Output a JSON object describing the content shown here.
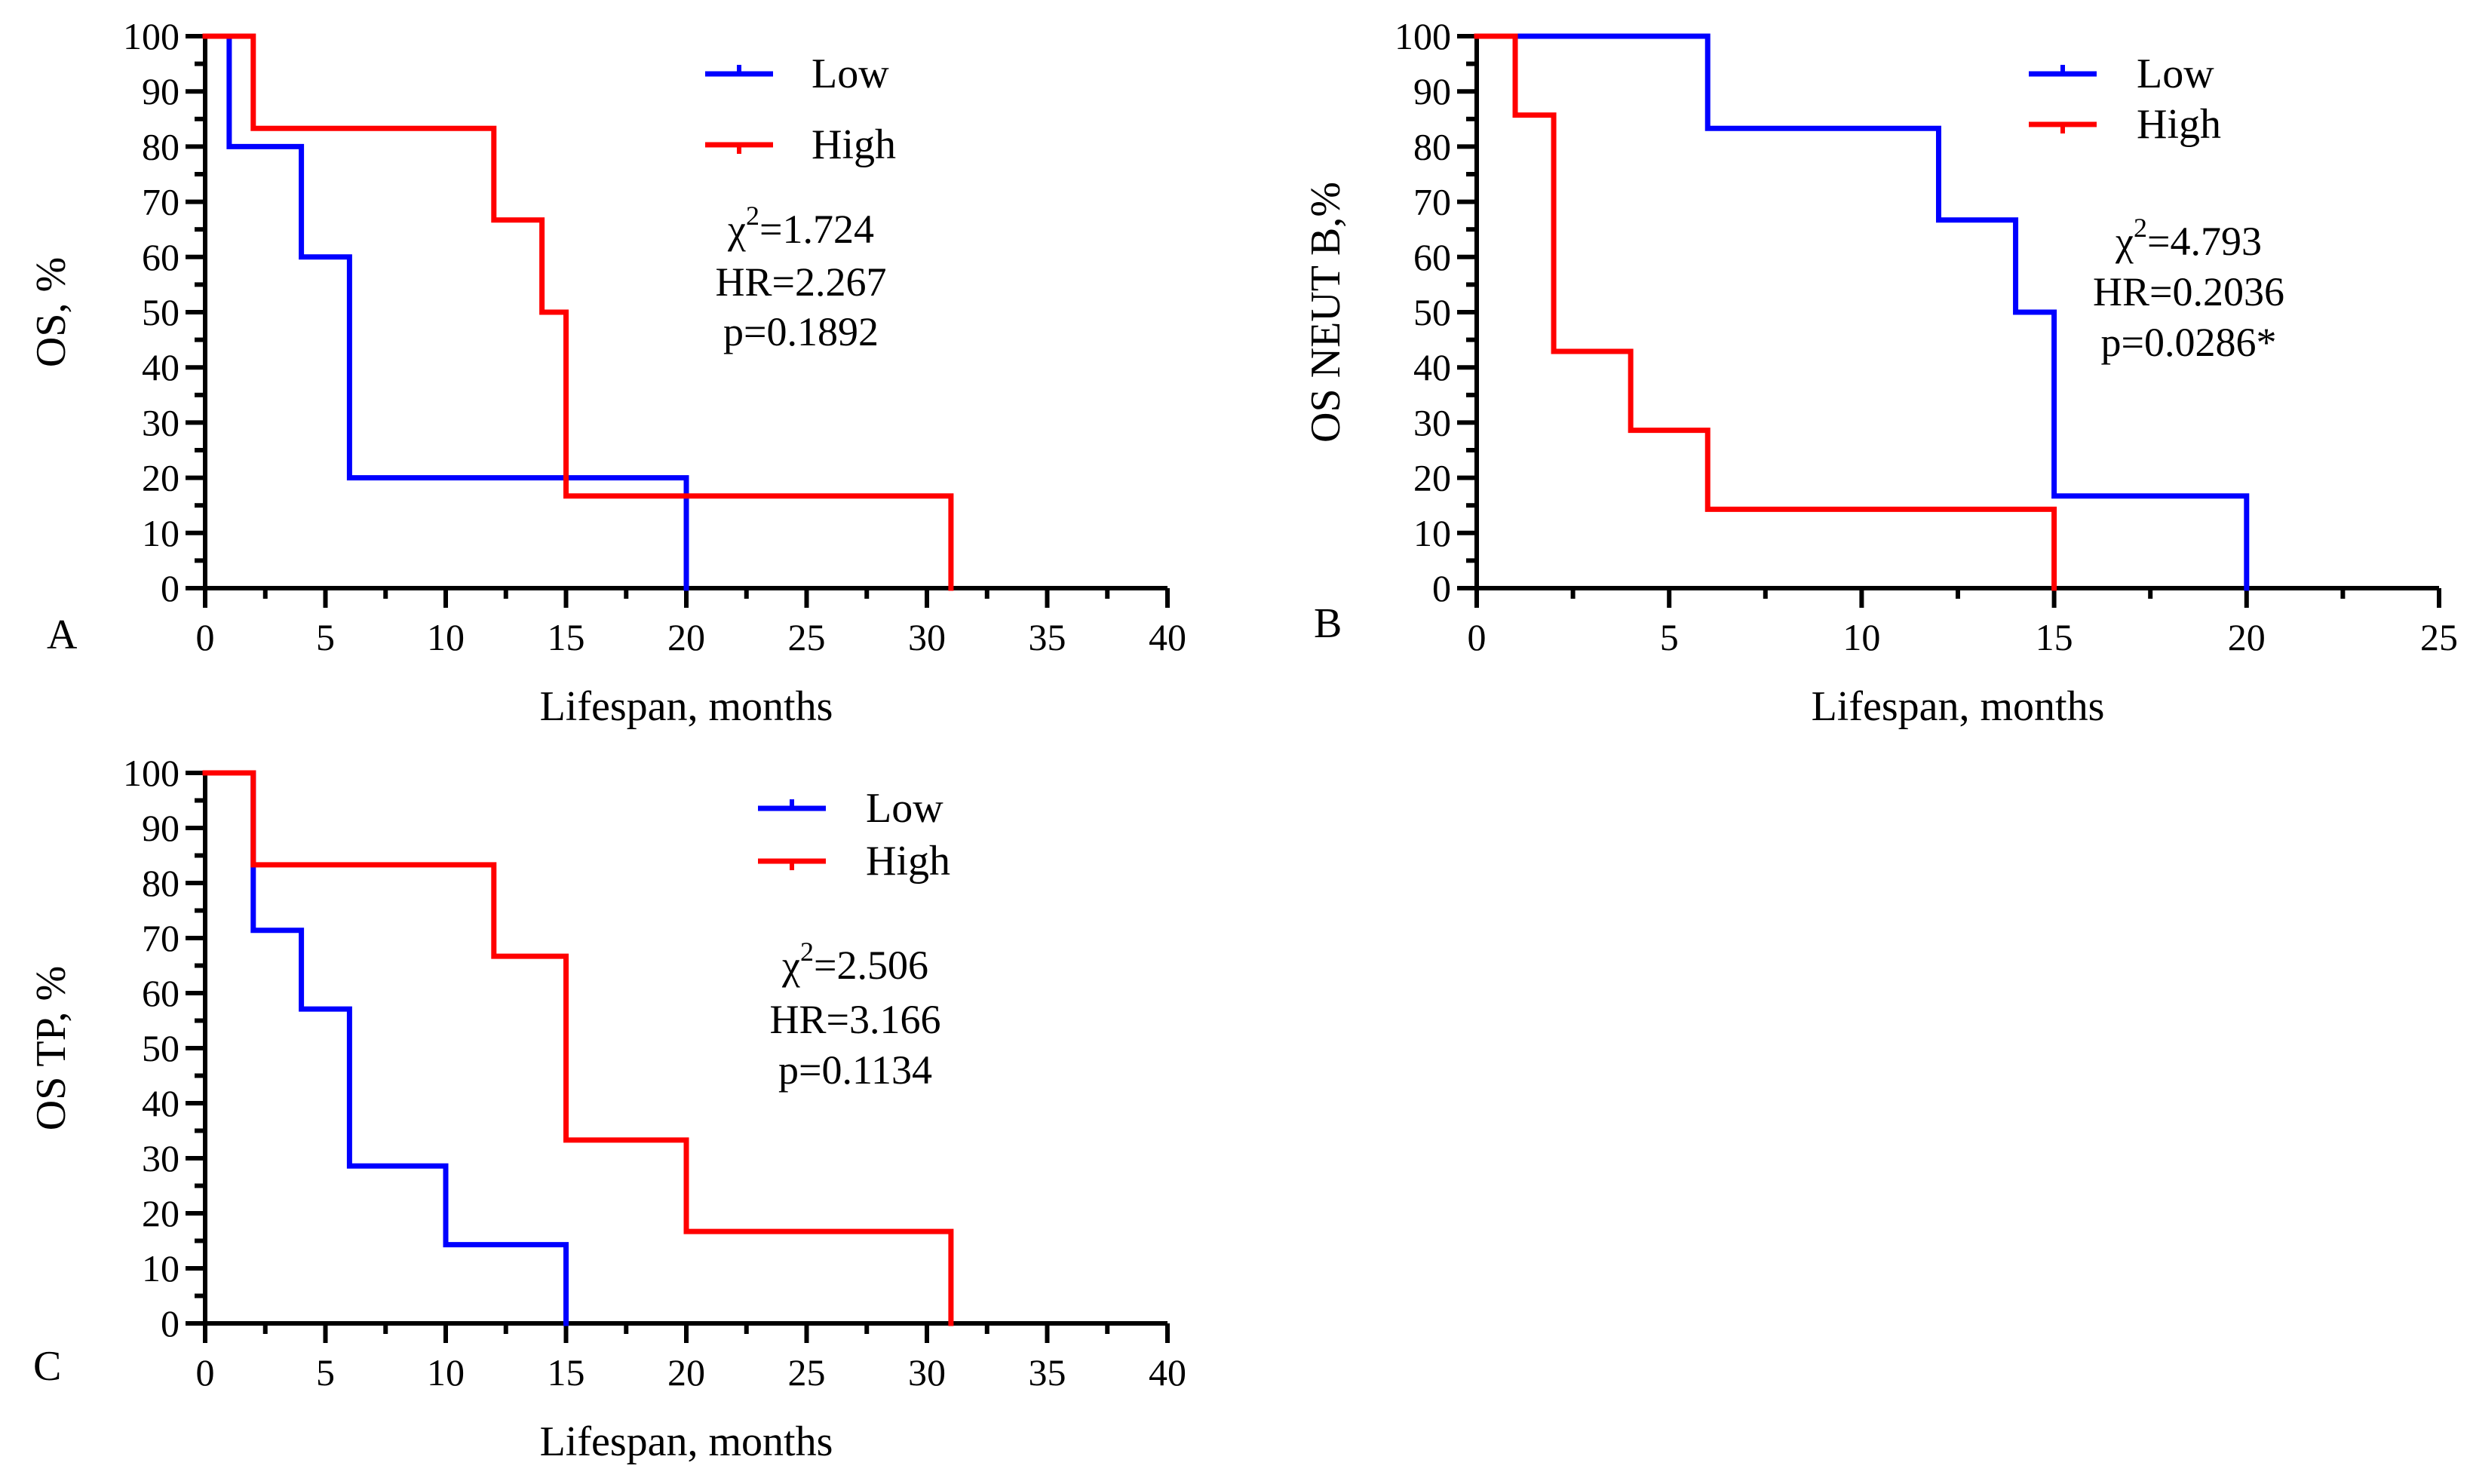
{
  "figure": {
    "panels": [
      "A",
      "B",
      "C"
    ]
  },
  "chart_data": [
    {
      "type": "line",
      "step": true,
      "panel_letter": "A",
      "title": "",
      "xlabel": "Lifespan, months",
      "ylabel": "OS, %",
      "xlim": [
        0,
        40
      ],
      "ylim": [
        0,
        100
      ],
      "x_ticks": [
        0,
        5,
        10,
        15,
        20,
        25,
        30,
        35,
        40
      ],
      "y_ticks": [
        0,
        10,
        20,
        30,
        40,
        50,
        60,
        70,
        80,
        90,
        100
      ],
      "legend_position": "top-center",
      "stats": [
        "χ²=1.724",
        "HR=2.267",
        "p=0.1892"
      ],
      "stats_lines": [
        {
          "symbol": "χ",
          "sup": "2",
          "value": "=1.724"
        },
        {
          "text": "HR=2.267"
        },
        {
          "text": "p=0.1892"
        }
      ],
      "series": [
        {
          "name": "Low",
          "color": "#0000ff",
          "x": [
            0,
            1,
            4,
            6,
            20,
            20
          ],
          "y": [
            100,
            80,
            60,
            20,
            0,
            0
          ]
        },
        {
          "name": "High",
          "color": "#ff0000",
          "x": [
            0,
            2,
            12,
            14,
            15,
            31
          ],
          "y": [
            100,
            83.3,
            66.7,
            50,
            16.7,
            0
          ]
        }
      ]
    },
    {
      "type": "line",
      "step": true,
      "panel_letter": "B",
      "title": "",
      "xlabel": "Lifespan, months",
      "ylabel": "OS NEUT B,%",
      "xlim": [
        0,
        25
      ],
      "ylim": [
        0,
        100
      ],
      "x_ticks": [
        0,
        5,
        10,
        15,
        20,
        25
      ],
      "y_ticks": [
        0,
        10,
        20,
        30,
        40,
        50,
        60,
        70,
        80,
        90,
        100
      ],
      "legend_position": "top-right",
      "stats": [
        "χ²=4.793",
        "HR=0.2036",
        "p=0.0286*"
      ],
      "stats_lines": [
        {
          "symbol": "χ",
          "sup": "2",
          "value": "=4.793"
        },
        {
          "text": "HR=0.2036"
        },
        {
          "text": "p=0.0286*"
        }
      ],
      "series": [
        {
          "name": "Low",
          "color": "#0000ff",
          "x": [
            0,
            6,
            12,
            14,
            15,
            20
          ],
          "y": [
            100,
            83.3,
            66.7,
            50,
            16.7,
            0
          ]
        },
        {
          "name": "High",
          "color": "#ff0000",
          "x": [
            0,
            1,
            2,
            4,
            6,
            15
          ],
          "y": [
            100,
            85.7,
            42.9,
            28.6,
            14.3,
            0
          ]
        }
      ]
    },
    {
      "type": "line",
      "step": true,
      "panel_letter": "C",
      "title": "",
      "xlabel": "Lifespan, months",
      "ylabel": "OS TP, %",
      "xlim": [
        0,
        40
      ],
      "ylim": [
        0,
        100
      ],
      "x_ticks": [
        0,
        5,
        10,
        15,
        20,
        25,
        30,
        35,
        40
      ],
      "y_ticks": [
        0,
        10,
        20,
        30,
        40,
        50,
        60,
        70,
        80,
        90,
        100
      ],
      "legend_position": "top-center",
      "stats": [
        "χ²=2.506",
        "HR=3.166",
        "p=0.1134"
      ],
      "stats_lines": [
        {
          "symbol": "χ",
          "sup": "2",
          "value": "=2.506"
        },
        {
          "text": "HR=3.166"
        },
        {
          "text": "p=0.1134"
        }
      ],
      "series": [
        {
          "name": "Low",
          "color": "#0000ff",
          "x": [
            0,
            2,
            4,
            6,
            10,
            15
          ],
          "y": [
            100,
            71.4,
            57.1,
            28.6,
            14.3,
            0
          ]
        },
        {
          "name": "High",
          "color": "#ff0000",
          "x": [
            0,
            2,
            12,
            15,
            20,
            31
          ],
          "y": [
            100,
            83.3,
            66.7,
            33.3,
            16.7,
            0
          ]
        }
      ]
    }
  ]
}
